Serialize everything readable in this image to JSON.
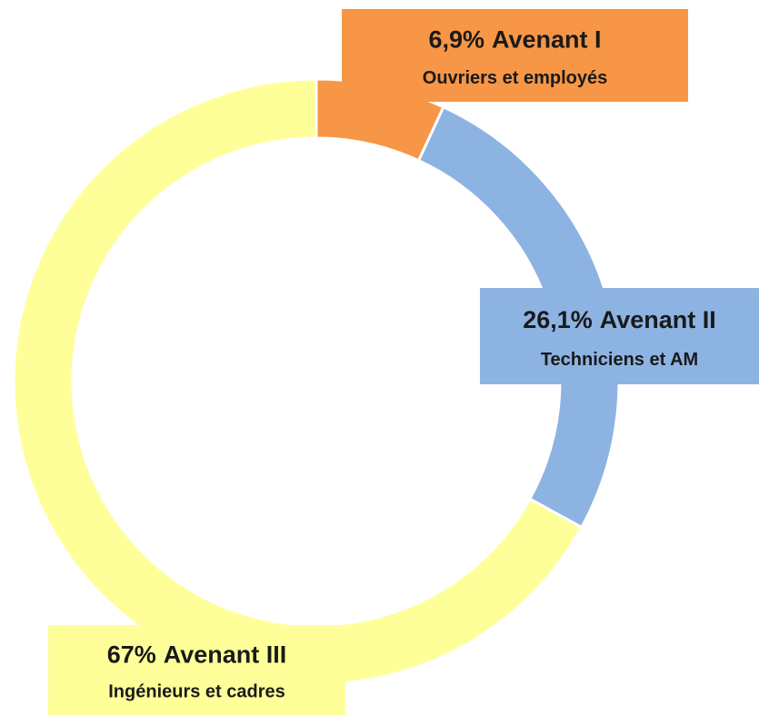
{
  "chart_data": {
    "type": "donut",
    "categories": [
      "Avenant I",
      "Avenant II",
      "Avenant III"
    ],
    "descriptions": [
      "Ouvriers et employés",
      "Techniciens et AM",
      "Ingénieurs et cadres"
    ],
    "values": [
      6.9,
      26.1,
      67
    ],
    "value_labels": [
      "6,9%",
      "26,1%",
      "67%"
    ],
    "colors": [
      "#f79646",
      "#8db3e2",
      "#ffff99"
    ]
  }
}
